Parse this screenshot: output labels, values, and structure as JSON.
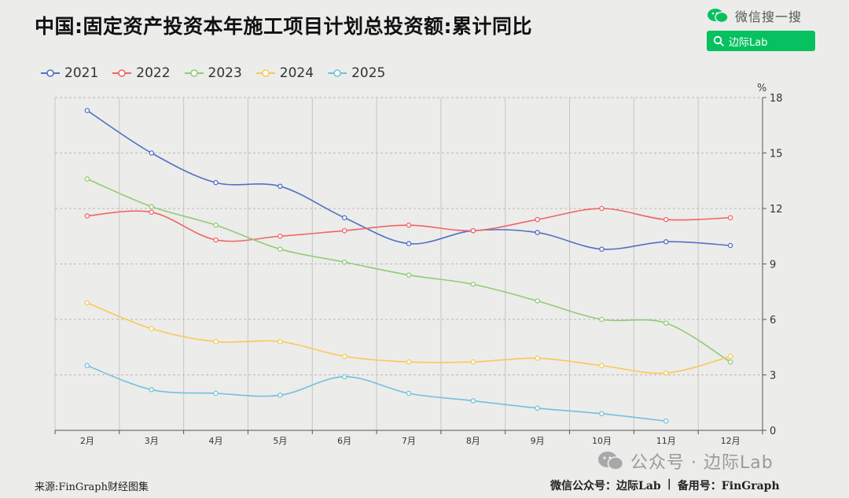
{
  "header": {
    "title": "中国:固定资产投资本年施工项目计划总投资额:累计同比",
    "brand_text": "微信搜一搜",
    "search_text": "边际Lab"
  },
  "footer": {
    "source": "来源:FinGraph财经图集",
    "watermark": "公众号 · 边际Lab",
    "account": "微信公众号：边际Lab",
    "separator": "|",
    "backup": "备用号：FinGraph"
  },
  "chart_data": {
    "type": "line",
    "title": "",
    "unit": "%",
    "categories": [
      "2月",
      "3月",
      "4月",
      "5月",
      "6月",
      "7月",
      "8月",
      "9月",
      "10月",
      "11月",
      "12月"
    ],
    "ylim": [
      0,
      18
    ],
    "y_ticks": [
      0,
      3,
      6,
      9,
      12,
      15,
      18
    ],
    "y_axis_position": "right",
    "grid": true,
    "legend_position": "top-left",
    "smooth": true,
    "series": [
      {
        "name": "2021",
        "color": "#5470c6",
        "values": [
          17.3,
          15.0,
          13.4,
          13.2,
          11.5,
          10.1,
          10.8,
          10.7,
          9.8,
          10.2,
          10.0
        ]
      },
      {
        "name": "2022",
        "color": "#ee6666",
        "values": [
          11.6,
          11.8,
          10.3,
          10.5,
          10.8,
          11.1,
          10.8,
          11.4,
          12.0,
          11.4,
          11.5
        ]
      },
      {
        "name": "2023",
        "color": "#91cc75",
        "values": [
          13.6,
          12.1,
          11.1,
          9.8,
          9.1,
          8.4,
          7.9,
          7.0,
          6.0,
          5.8,
          3.7
        ]
      },
      {
        "name": "2024",
        "color": "#fac858",
        "values": [
          6.9,
          5.5,
          4.8,
          4.8,
          4.0,
          3.7,
          3.7,
          3.9,
          3.5,
          3.1,
          4.0
        ]
      },
      {
        "name": "2025",
        "color": "#73c0de",
        "values": [
          3.5,
          2.2,
          2.0,
          1.9,
          2.9,
          2.0,
          1.6,
          1.2,
          0.9,
          0.5,
          null
        ]
      }
    ]
  }
}
